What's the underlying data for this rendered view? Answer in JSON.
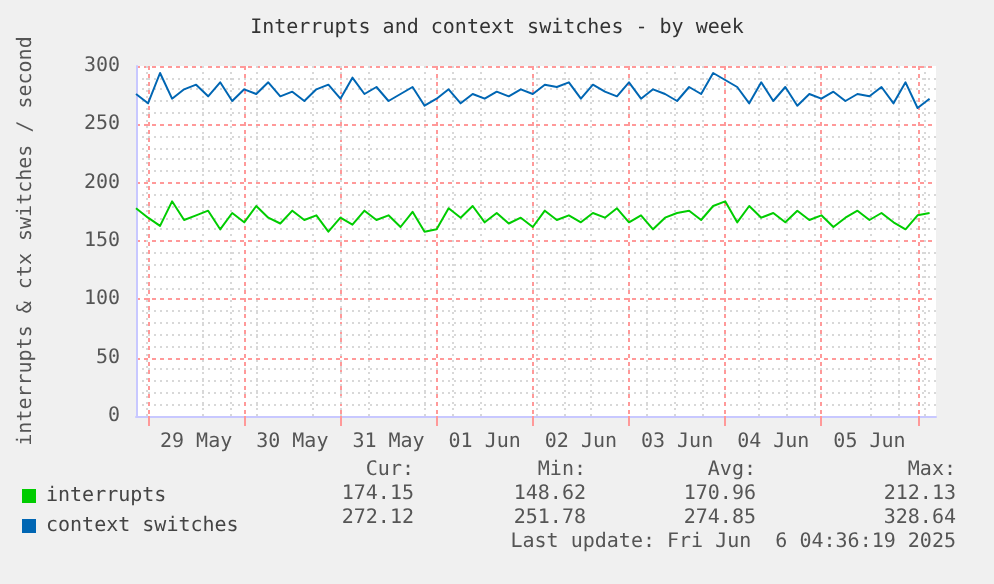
{
  "chart_data": {
    "type": "line",
    "title": "Interrupts and context switches - by week",
    "ylabel": "interrupts & ctx switches / second",
    "x": [
      "2025-05-28T21:00",
      "2025-05-29T00:00",
      "2025-05-29T03:00",
      "2025-05-29T06:00",
      "2025-05-29T09:00",
      "2025-05-29T12:00",
      "2025-05-29T15:00",
      "2025-05-29T18:00",
      "2025-05-29T21:00",
      "2025-05-30T00:00",
      "2025-05-30T03:00",
      "2025-05-30T06:00",
      "2025-05-30T09:00",
      "2025-05-30T12:00",
      "2025-05-30T15:00",
      "2025-05-30T18:00",
      "2025-05-30T21:00",
      "2025-05-31T00:00",
      "2025-05-31T03:00",
      "2025-05-31T06:00",
      "2025-05-31T09:00",
      "2025-05-31T12:00",
      "2025-05-31T15:00",
      "2025-05-31T18:00",
      "2025-05-31T21:00",
      "2025-06-01T00:00",
      "2025-06-01T03:00",
      "2025-06-01T06:00",
      "2025-06-01T09:00",
      "2025-06-01T12:00",
      "2025-06-01T15:00",
      "2025-06-01T18:00",
      "2025-06-01T21:00",
      "2025-06-02T00:00",
      "2025-06-02T03:00",
      "2025-06-02T06:00",
      "2025-06-02T09:00",
      "2025-06-02T12:00",
      "2025-06-02T15:00",
      "2025-06-02T18:00",
      "2025-06-02T21:00",
      "2025-06-03T00:00",
      "2025-06-03T03:00",
      "2025-06-03T06:00",
      "2025-06-03T09:00",
      "2025-06-03T12:00",
      "2025-06-03T15:00",
      "2025-06-03T18:00",
      "2025-06-03T21:00",
      "2025-06-04T00:00",
      "2025-06-04T03:00",
      "2025-06-04T06:00",
      "2025-06-04T09:00",
      "2025-06-04T12:00",
      "2025-06-04T15:00",
      "2025-06-04T18:00",
      "2025-06-04T21:00",
      "2025-06-05T00:00",
      "2025-06-05T03:00",
      "2025-06-05T06:00",
      "2025-06-05T09:00",
      "2025-06-05T12:00",
      "2025-06-05T15:00",
      "2025-06-05T18:00",
      "2025-06-05T21:00",
      "2025-06-06T00:00",
      "2025-06-06T03:00"
    ],
    "series": [
      {
        "name": "interrupts",
        "color": "#00cc00",
        "values": [
          178,
          170,
          163,
          184,
          168,
          172,
          176,
          160,
          174,
          166,
          180,
          170,
          165,
          176,
          168,
          172,
          158,
          170,
          164,
          176,
          168,
          172,
          162,
          175,
          158,
          160,
          178,
          170,
          180,
          166,
          174,
          165,
          170,
          162,
          176,
          168,
          172,
          166,
          174,
          170,
          178,
          166,
          172,
          160,
          170,
          174,
          176,
          168,
          180,
          184,
          166,
          180,
          170,
          174,
          166,
          176,
          168,
          172,
          162,
          170,
          176,
          168,
          174,
          166,
          160,
          172,
          174
        ]
      },
      {
        "name": "context switches",
        "color": "#0066b3",
        "values": [
          276,
          268,
          294,
          272,
          280,
          284,
          274,
          286,
          270,
          280,
          276,
          286,
          274,
          278,
          270,
          280,
          284,
          272,
          290,
          276,
          282,
          270,
          276,
          282,
          266,
          272,
          280,
          268,
          276,
          272,
          278,
          274,
          280,
          276,
          284,
          282,
          286,
          272,
          284,
          278,
          274,
          286,
          272,
          280,
          276,
          270,
          282,
          276,
          294,
          288,
          282,
          268,
          286,
          270,
          282,
          266,
          276,
          272,
          278,
          270,
          276,
          274,
          282,
          268,
          286,
          264,
          272
        ]
      }
    ],
    "xlim": [
      "2025-05-28T21:00",
      "2025-06-06T04:36"
    ],
    "xticks": [
      {
        "value": "2025-05-29T00:00",
        "label": null
      },
      {
        "value": "2025-05-29T12:00",
        "label": "29 May"
      },
      {
        "value": "2025-05-30T00:00",
        "label": null
      },
      {
        "value": "2025-05-30T12:00",
        "label": "30 May"
      },
      {
        "value": "2025-05-31T00:00",
        "label": null
      },
      {
        "value": "2025-05-31T12:00",
        "label": "31 May"
      },
      {
        "value": "2025-06-01T00:00",
        "label": null
      },
      {
        "value": "2025-06-01T12:00",
        "label": "01 Jun"
      },
      {
        "value": "2025-06-02T00:00",
        "label": null
      },
      {
        "value": "2025-06-02T12:00",
        "label": "02 Jun"
      },
      {
        "value": "2025-06-03T00:00",
        "label": null
      },
      {
        "value": "2025-06-03T12:00",
        "label": "03 Jun"
      },
      {
        "value": "2025-06-04T00:00",
        "label": null
      },
      {
        "value": "2025-06-04T12:00",
        "label": "04 Jun"
      },
      {
        "value": "2025-06-05T00:00",
        "label": null
      },
      {
        "value": "2025-06-05T12:00",
        "label": "05 Jun"
      },
      {
        "value": "2025-06-06T00:00",
        "label": null
      }
    ],
    "ylim": [
      0,
      300
    ],
    "yticks": [
      0,
      50,
      100,
      150,
      200,
      250,
      300
    ],
    "grid": true,
    "legend": "bottom left",
    "marker": "none",
    "line_style": "solid",
    "annotations": [
      "Cur:",
      "Min:",
      "Avg:",
      "Max:",
      "174.15",
      "148.62",
      "170.96",
      "212.13",
      "272.12",
      "251.78",
      "274.85",
      "328.64",
      "Last update: Fri Jun  6 04:36:19 2025"
    ]
  }
}
